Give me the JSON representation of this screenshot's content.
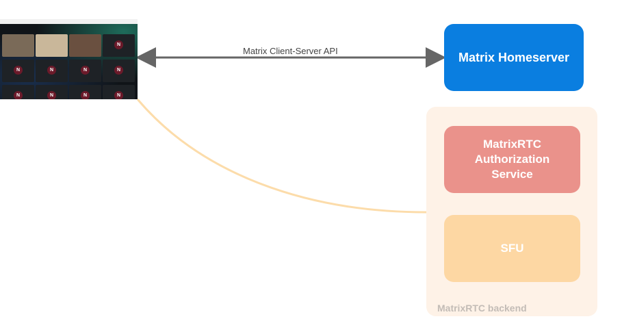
{
  "nodes": {
    "homeserver": {
      "label": "Matrix Homeserver",
      "color": "#0a7ee0"
    },
    "backend": {
      "label": "MatrixRTC backend",
      "color": "#fef2e7"
    },
    "auth": {
      "label": "MatrixRTC Authorization Service",
      "color": "#ea928b"
    },
    "sfu": {
      "label": "SFU",
      "color": "#fdd7a3"
    }
  },
  "edges": [
    {
      "from": "client",
      "to": "homeserver",
      "label": "Matrix Client-Server API",
      "style": "double-arrow",
      "color": "#666666"
    },
    {
      "from": "client",
      "to": "backend",
      "label": "",
      "style": "curve",
      "color": "#fcdcaa"
    }
  ],
  "client": {
    "avatar_letter": "N",
    "image": "video-call-screenshot"
  }
}
